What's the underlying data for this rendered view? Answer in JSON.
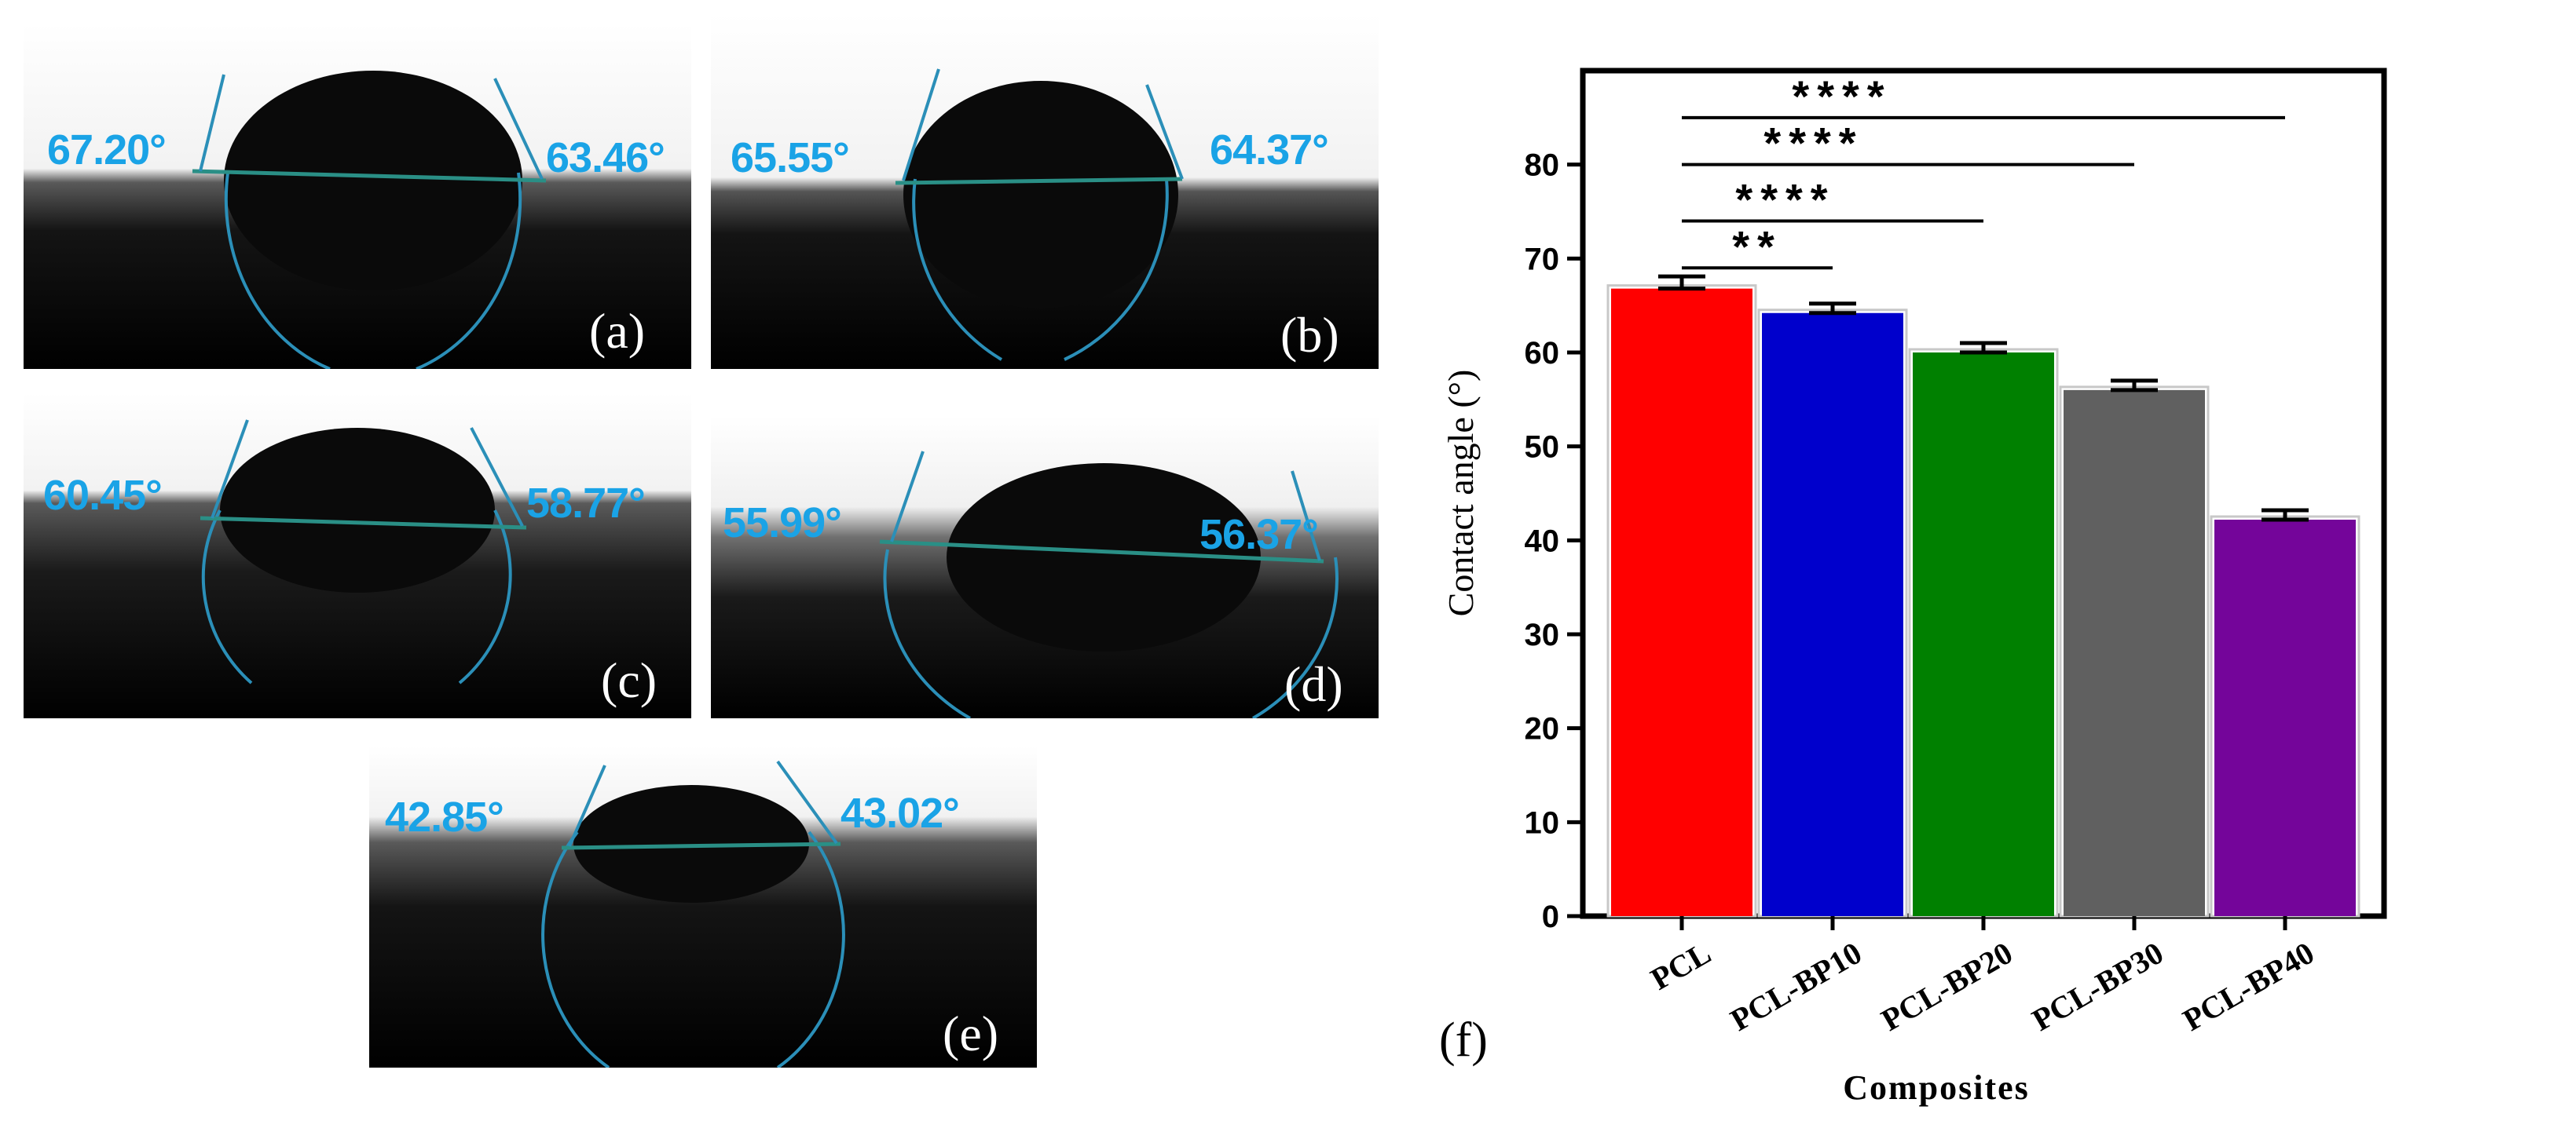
{
  "panels": [
    {
      "label": "(a)",
      "left_angle": "67.20°",
      "right_angle": "63.46°"
    },
    {
      "label": "(b)",
      "left_angle": "65.55°",
      "right_angle": "64.37°"
    },
    {
      "label": "(c)",
      "left_angle": "60.45°",
      "right_angle": "58.77°"
    },
    {
      "label": "(d)",
      "left_angle": "55.99°",
      "right_angle": "56.37°"
    },
    {
      "label": "(e)",
      "left_angle": "42.85°",
      "right_angle": "43.02°"
    }
  ],
  "chart_panel_label": "(f)",
  "chart_data": {
    "type": "bar",
    "categories": [
      "PCL",
      "PCL-BP10",
      "PCL-BP20",
      "PCL-BP30",
      "PCL-BP40"
    ],
    "values": [
      66.8,
      64.2,
      60.0,
      56.0,
      42.2
    ],
    "errors": [
      1.3,
      1.0,
      1.0,
      1.0,
      1.0
    ],
    "colors": [
      "#ff0000",
      "#0000cc",
      "#008000",
      "#606060",
      "#74059a"
    ],
    "xlabel": "Composites",
    "ylabel": "Contact angle (°)",
    "ylim": [
      0,
      90
    ],
    "yticks": [
      0,
      10,
      20,
      30,
      40,
      50,
      60,
      70,
      80
    ],
    "significance": [
      {
        "from": "PCL",
        "to": "PCL-BP10",
        "label": "**"
      },
      {
        "from": "PCL",
        "to": "PCL-BP20",
        "label": "****"
      },
      {
        "from": "PCL",
        "to": "PCL-BP30",
        "label": "****"
      },
      {
        "from": "PCL",
        "to": "PCL-BP40",
        "label": "****"
      }
    ]
  }
}
